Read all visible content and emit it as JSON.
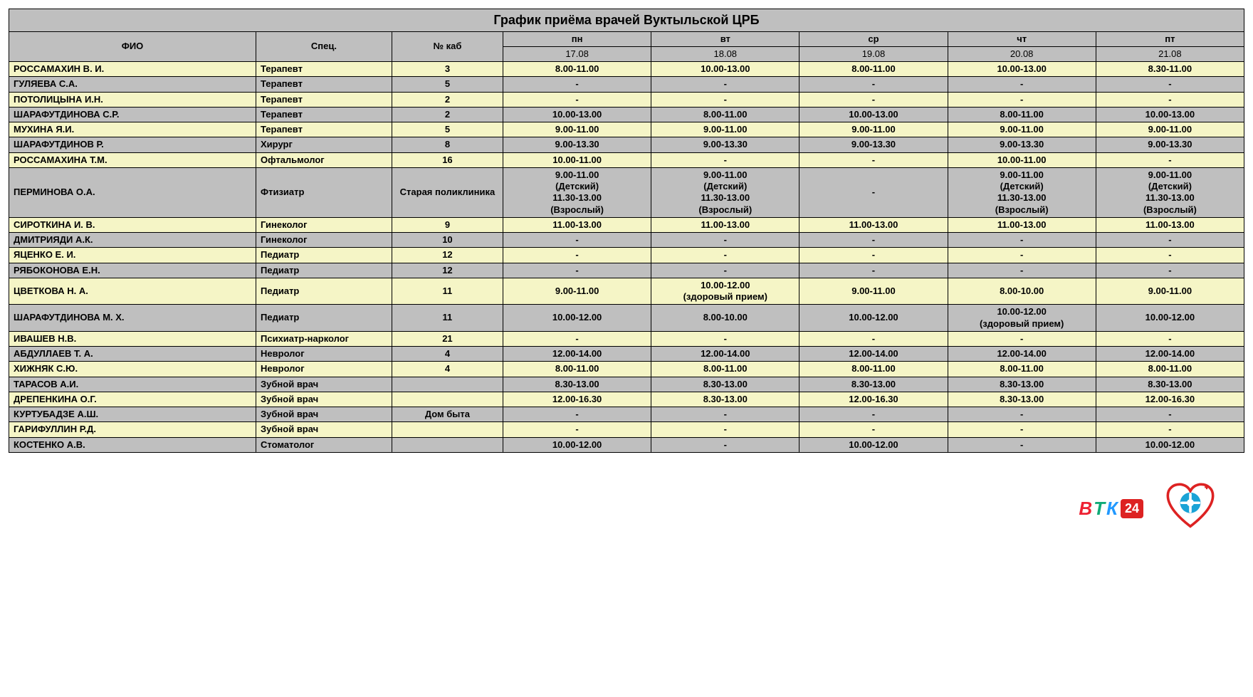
{
  "title": "График приёма врачей Вуктыльской ЦРБ",
  "columns": {
    "name": "ФИО",
    "spec": "Спец.",
    "room": "№ каб",
    "days": [
      "пн",
      "вт",
      "ср",
      "чт",
      "пт"
    ],
    "dates": [
      "17.08",
      "18.08",
      "19.08",
      "20.08",
      "21.08"
    ]
  },
  "colors": {
    "row_yellow": "#f5f5c6",
    "row_grey": "#bfbfbf",
    "border": "#000000",
    "background": "#ffffff"
  },
  "rows": [
    {
      "color": "yellow",
      "name": "РОССАМАХИН В. И.",
      "spec": "Терапевт",
      "room": "3",
      "cells": [
        "8.00-11.00",
        "10.00-13.00",
        "8.00-11.00",
        "10.00-13.00",
        "8.30-11.00"
      ]
    },
    {
      "color": "grey",
      "name": "ГУЛЯЕВА С.А.",
      "spec": "Терапевт",
      "room": "5",
      "cells": [
        "-",
        "-",
        "-",
        "-",
        "-"
      ]
    },
    {
      "color": "yellow",
      "name": "ПОТОЛИЦЫНА И.Н.",
      "spec": "Терапевт",
      "room": "2",
      "cells": [
        "-",
        "-",
        "-",
        "-",
        "-"
      ]
    },
    {
      "color": "grey",
      "name": "ШАРАФУТДИНОВА С.Р.",
      "spec": "Терапевт",
      "room": "2",
      "cells": [
        "10.00-13.00",
        "8.00-11.00",
        "10.00-13.00",
        "8.00-11.00",
        "10.00-13.00"
      ]
    },
    {
      "color": "yellow",
      "name": "МУХИНА Я.И.",
      "spec": "Терапевт",
      "room": "5",
      "cells": [
        "9.00-11.00",
        "9.00-11.00",
        "9.00-11.00",
        "9.00-11.00",
        "9.00-11.00"
      ]
    },
    {
      "color": "grey",
      "name": "ШАРАФУТДИНОВ Р.",
      "spec": "Хирург",
      "room": "8",
      "cells": [
        "9.00-13.30",
        "9.00-13.30",
        "9.00-13.30",
        "9.00-13.30",
        "9.00-13.30"
      ]
    },
    {
      "color": "yellow",
      "name": "РОССАМАХИНА Т.М.",
      "spec": "Офтальмолог",
      "room": "16",
      "cells": [
        "10.00-11.00",
        "-",
        "-",
        "10.00-11.00",
        "-"
      ]
    },
    {
      "color": "grey",
      "name": "ПЕРМИНОВА О.А.",
      "spec": "Фтизиатр",
      "room": "Старая поликлиника",
      "cells": [
        "9.00-11.00\n(Детский)\n11.30-13.00\n(Взрослый)",
        "9.00-11.00\n(Детский)\n11.30-13.00\n(Взрослый)",
        "-",
        "9.00-11.00\n(Детский)\n11.30-13.00\n(Взрослый)",
        "9.00-11.00\n(Детский)\n11.30-13.00\n(Взрослый)"
      ]
    },
    {
      "color": "yellow",
      "name": "СИРОТКИНА И. В.",
      "spec": "Гинеколог",
      "room": "9",
      "cells": [
        "11.00-13.00",
        "11.00-13.00",
        "11.00-13.00",
        "11.00-13.00",
        "11.00-13.00"
      ]
    },
    {
      "color": "grey",
      "name": "ДМИТРИЯДИ А.К.",
      "spec": "Гинеколог",
      "room": "10",
      "cells": [
        "-",
        "-",
        "-",
        "-",
        "-"
      ]
    },
    {
      "color": "yellow",
      "name": "ЯЦЕНКО Е. И.",
      "spec": "Педиатр",
      "room": "12",
      "cells": [
        "-",
        "-",
        "-",
        "-",
        "-"
      ]
    },
    {
      "color": "grey",
      "name": "РЯБОКОНОВА Е.Н.",
      "spec": "Педиатр",
      "room": "12",
      "cells": [
        "-",
        "-",
        "-",
        "-",
        "-"
      ]
    },
    {
      "color": "yellow",
      "name": "ЦВЕТКОВА Н. А.",
      "spec": "Педиатр",
      "room": "11",
      "cells": [
        "9.00-11.00",
        "10.00-12.00\n(здоровый прием)",
        "9.00-11.00",
        "8.00-10.00",
        "9.00-11.00"
      ]
    },
    {
      "color": "grey",
      "name": "ШАРАФУТДИНОВА М. Х.",
      "spec": "Педиатр",
      "room": "11",
      "cells": [
        "10.00-12.00",
        "8.00-10.00",
        "10.00-12.00",
        "10.00-12.00\n(здоровый прием)",
        "10.00-12.00"
      ]
    },
    {
      "color": "yellow",
      "name": "ИВАШЕВ Н.В.",
      "spec": "Психиатр-нарколог",
      "room": "21",
      "cells": [
        "-",
        "-",
        "-",
        "-",
        "-"
      ]
    },
    {
      "color": "grey",
      "name": "АБДУЛЛАЕВ Т. А.",
      "spec": "Невролог",
      "room": "4",
      "cells": [
        "12.00-14.00",
        "12.00-14.00",
        "12.00-14.00",
        "12.00-14.00",
        "12.00-14.00"
      ]
    },
    {
      "color": "yellow",
      "name": "ХИЖНЯК С.Ю.",
      "spec": "Невролог",
      "room": "4",
      "cells": [
        "8.00-11.00",
        "8.00-11.00",
        "8.00-11.00",
        "8.00-11.00",
        "8.00-11.00"
      ]
    },
    {
      "color": "grey",
      "name": "ТАРАСОВ А.И.",
      "spec": "Зубной врач",
      "room": "",
      "cells": [
        "8.30-13.00",
        "8.30-13.00",
        "8.30-13.00",
        "8.30-13.00",
        "8.30-13.00"
      ]
    },
    {
      "color": "yellow",
      "name": "ДРЕПЕНКИНА О.Г.",
      "spec": "Зубной врач",
      "room": "",
      "cells": [
        "12.00-16.30",
        "8.30-13.00",
        "12.00-16.30",
        "8.30-13.00",
        "12.00-16.30"
      ]
    },
    {
      "color": "grey",
      "name": "КУРТУБАДЗЕ А.Ш.",
      "spec": "Зубной врач",
      "room": "Дом быта",
      "cells": [
        "-",
        "-",
        "-",
        "-",
        "-"
      ]
    },
    {
      "color": "yellow",
      "name": "ГАРИФУЛЛИН Р.Д.",
      "spec": "Зубной врач",
      "room": "",
      "cells": [
        "-",
        "-",
        "-",
        "-",
        "-"
      ]
    },
    {
      "color": "grey",
      "name": "КОСТЕНКО А.В.",
      "spec": "Стоматолог",
      "room": "",
      "cells": [
        "10.00-12.00",
        "-",
        "10.00-12.00",
        "-",
        "10.00-12.00"
      ]
    }
  ],
  "footer": {
    "btk_text": {
      "b": "В",
      "t": "Т",
      "k": "К",
      "num": "24"
    }
  }
}
